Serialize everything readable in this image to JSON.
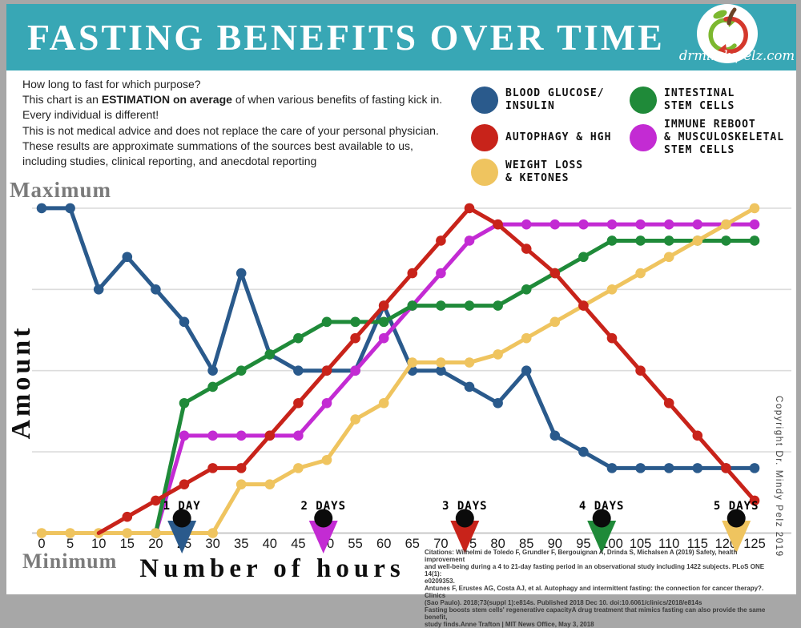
{
  "page": {
    "frame_color": "#a7a7a7"
  },
  "header": {
    "title": "FASTING BENEFITS OVER TIME",
    "bar_color": "#38a7b5",
    "brand_url": "drmindypelz.com"
  },
  "intro": {
    "line1": "How long to fast for which purpose?",
    "line2_prefix": "This chart is an ",
    "line2_bold": "ESTIMATION on average",
    "line2_suffix": " of when various benefits of fasting kick in.",
    "line3": "Every individual is different!",
    "line4": "This is not medical advice and does not replace the care of your personal physician.",
    "line5": "These results are approximate summations of the sources best available to us,",
    "line6": "including studies, clinical reporting, and anecdotal reporting"
  },
  "legend": {
    "column1": [
      {
        "label": "BLOOD GLUCOSE/\nINSULIN",
        "color": "#2a5a8c"
      },
      {
        "label": "AUTOPHAGY & HGH",
        "color": "#c8231a"
      },
      {
        "label": "WEIGHT LOSS\n& KETONES",
        "color": "#efc45f"
      }
    ],
    "column2": [
      {
        "label": "INTESTINAL\nSTEM CELLS",
        "color": "#1f8a39"
      },
      {
        "label": "IMMUNE REBOOT\n& MUSCULOSKELETAL\nSTEM CELLS",
        "color": "#c32bd3"
      }
    ]
  },
  "chart_data": {
    "type": "line",
    "xlabel": "Number of hours",
    "ylabel": "Amount",
    "y_max_label": "Maximum",
    "y_min_label": "Minimum",
    "ylim": [
      0,
      4
    ],
    "gridlines_at": [
      1,
      2,
      3,
      4
    ],
    "x_ticks": [
      0,
      5,
      10,
      15,
      20,
      25,
      30,
      35,
      40,
      45,
      50,
      55,
      60,
      65,
      70,
      75,
      80,
      85,
      90,
      95,
      100,
      105,
      110,
      115,
      120,
      125
    ],
    "x_step_hours": 5,
    "series": [
      {
        "id": "blood-glucose-insulin",
        "name": "Blood Glucose/Insulin",
        "color": "#2a5a8c",
        "x_start_hour": 0,
        "values": [
          4,
          4,
          3,
          3.4,
          3,
          2.6,
          2,
          3.2,
          2.2,
          2,
          2,
          2,
          2.8,
          2,
          2,
          1.8,
          1.6,
          2,
          1.2,
          1,
          0.8,
          0.8,
          0.8,
          0.8,
          0.8,
          0.8
        ]
      },
      {
        "id": "immune-reboot-musculoskeletal-stem-cells",
        "name": "Immune Reboot & Musculoskeletal Stem Cells",
        "color": "#c32bd3",
        "x_start_hour": 20,
        "values": [
          0,
          1.2,
          1.2,
          1.2,
          1.2,
          1.2,
          1.6,
          2,
          2.4,
          2.8,
          3.2,
          3.6,
          3.8,
          3.8,
          3.8,
          3.8,
          3.8,
          3.8,
          3.8,
          3.8,
          3.8,
          3.8
        ]
      },
      {
        "id": "intestinal-stem-cells",
        "name": "Intestinal Stem Cells",
        "color": "#1f8a39",
        "x_start_hour": 20,
        "values": [
          0,
          1.6,
          1.8,
          2,
          2.2,
          2.4,
          2.6,
          2.6,
          2.6,
          2.8,
          2.8,
          2.8,
          2.8,
          3,
          3.2,
          3.4,
          3.6,
          3.6,
          3.6,
          3.6,
          3.6,
          3.6
        ]
      },
      {
        "id": "weight-loss-ketones",
        "name": "Weight Loss & Ketones",
        "color": "#efc45f",
        "x_start_hour": 0,
        "values": [
          0,
          0,
          0,
          0,
          0,
          0,
          0,
          0.6,
          0.6,
          0.8,
          0.9,
          1.4,
          1.6,
          2.1,
          2.1,
          2.1,
          2.2,
          2.4,
          2.6,
          2.8,
          3,
          3.2,
          3.4,
          3.6,
          3.8,
          4
        ]
      },
      {
        "id": "autophagy-hgh",
        "name": "Autophagy & HGH",
        "color": "#c8231a",
        "x_start_hour": 10,
        "dots_from_index": 1,
        "values": [
          0,
          0.2,
          0.4,
          0.6,
          0.8,
          0.8,
          1.2,
          1.6,
          2,
          2.4,
          2.8,
          3.2,
          3.6,
          4,
          3.8,
          3.5,
          3.2,
          2.8,
          2.4,
          2,
          1.6,
          1.2,
          0.8,
          0.4
        ]
      }
    ],
    "day_markers": [
      {
        "label": "1 DAY",
        "at_hour": 24.6,
        "arrow_color": "#2a5a8c"
      },
      {
        "label": "2 DAYS",
        "at_hour": 49.4,
        "arrow_color": "#c32bd3"
      },
      {
        "label": "3 DAYS",
        "at_hour": 74.2,
        "arrow_color": "#c8231a"
      },
      {
        "label": "4 DAYS",
        "at_hour": 98.2,
        "arrow_color": "#1f8a39"
      },
      {
        "label": "5 DAYS",
        "at_hour": 121.8,
        "arrow_color": "#efc45f"
      }
    ]
  },
  "footer": {
    "citations": "Citations: Wilhelmi de Toledo F, Grundler F, Bergouignan A, Drinda S, Michalsen A (2019) Safety, health improvement\nand well-being during a 4 to 21-day fasting period in an observational study including 1422 subjects. PLoS ONE 14(1):\ne0209353.\nAntunes F, Erustes AG, Costa AJ, et al. Autophagy and intermittent fasting: the connection for cancer therapy?. Clinics\n(Sao Paulo). 2018;73(suppl 1):e814s. Published 2018 Dec 10. doi:10.6061/clinics/2018/e814s\nFasting boosts stem cells' regenerative capacityA drug treatment that mimics fasting can also provide the same benefit,\nstudy finds.Anne Trafton | MIT News Office, May 3, 2018",
    "copyright": "Copyright Dr. Mindy Pelz 2019"
  }
}
